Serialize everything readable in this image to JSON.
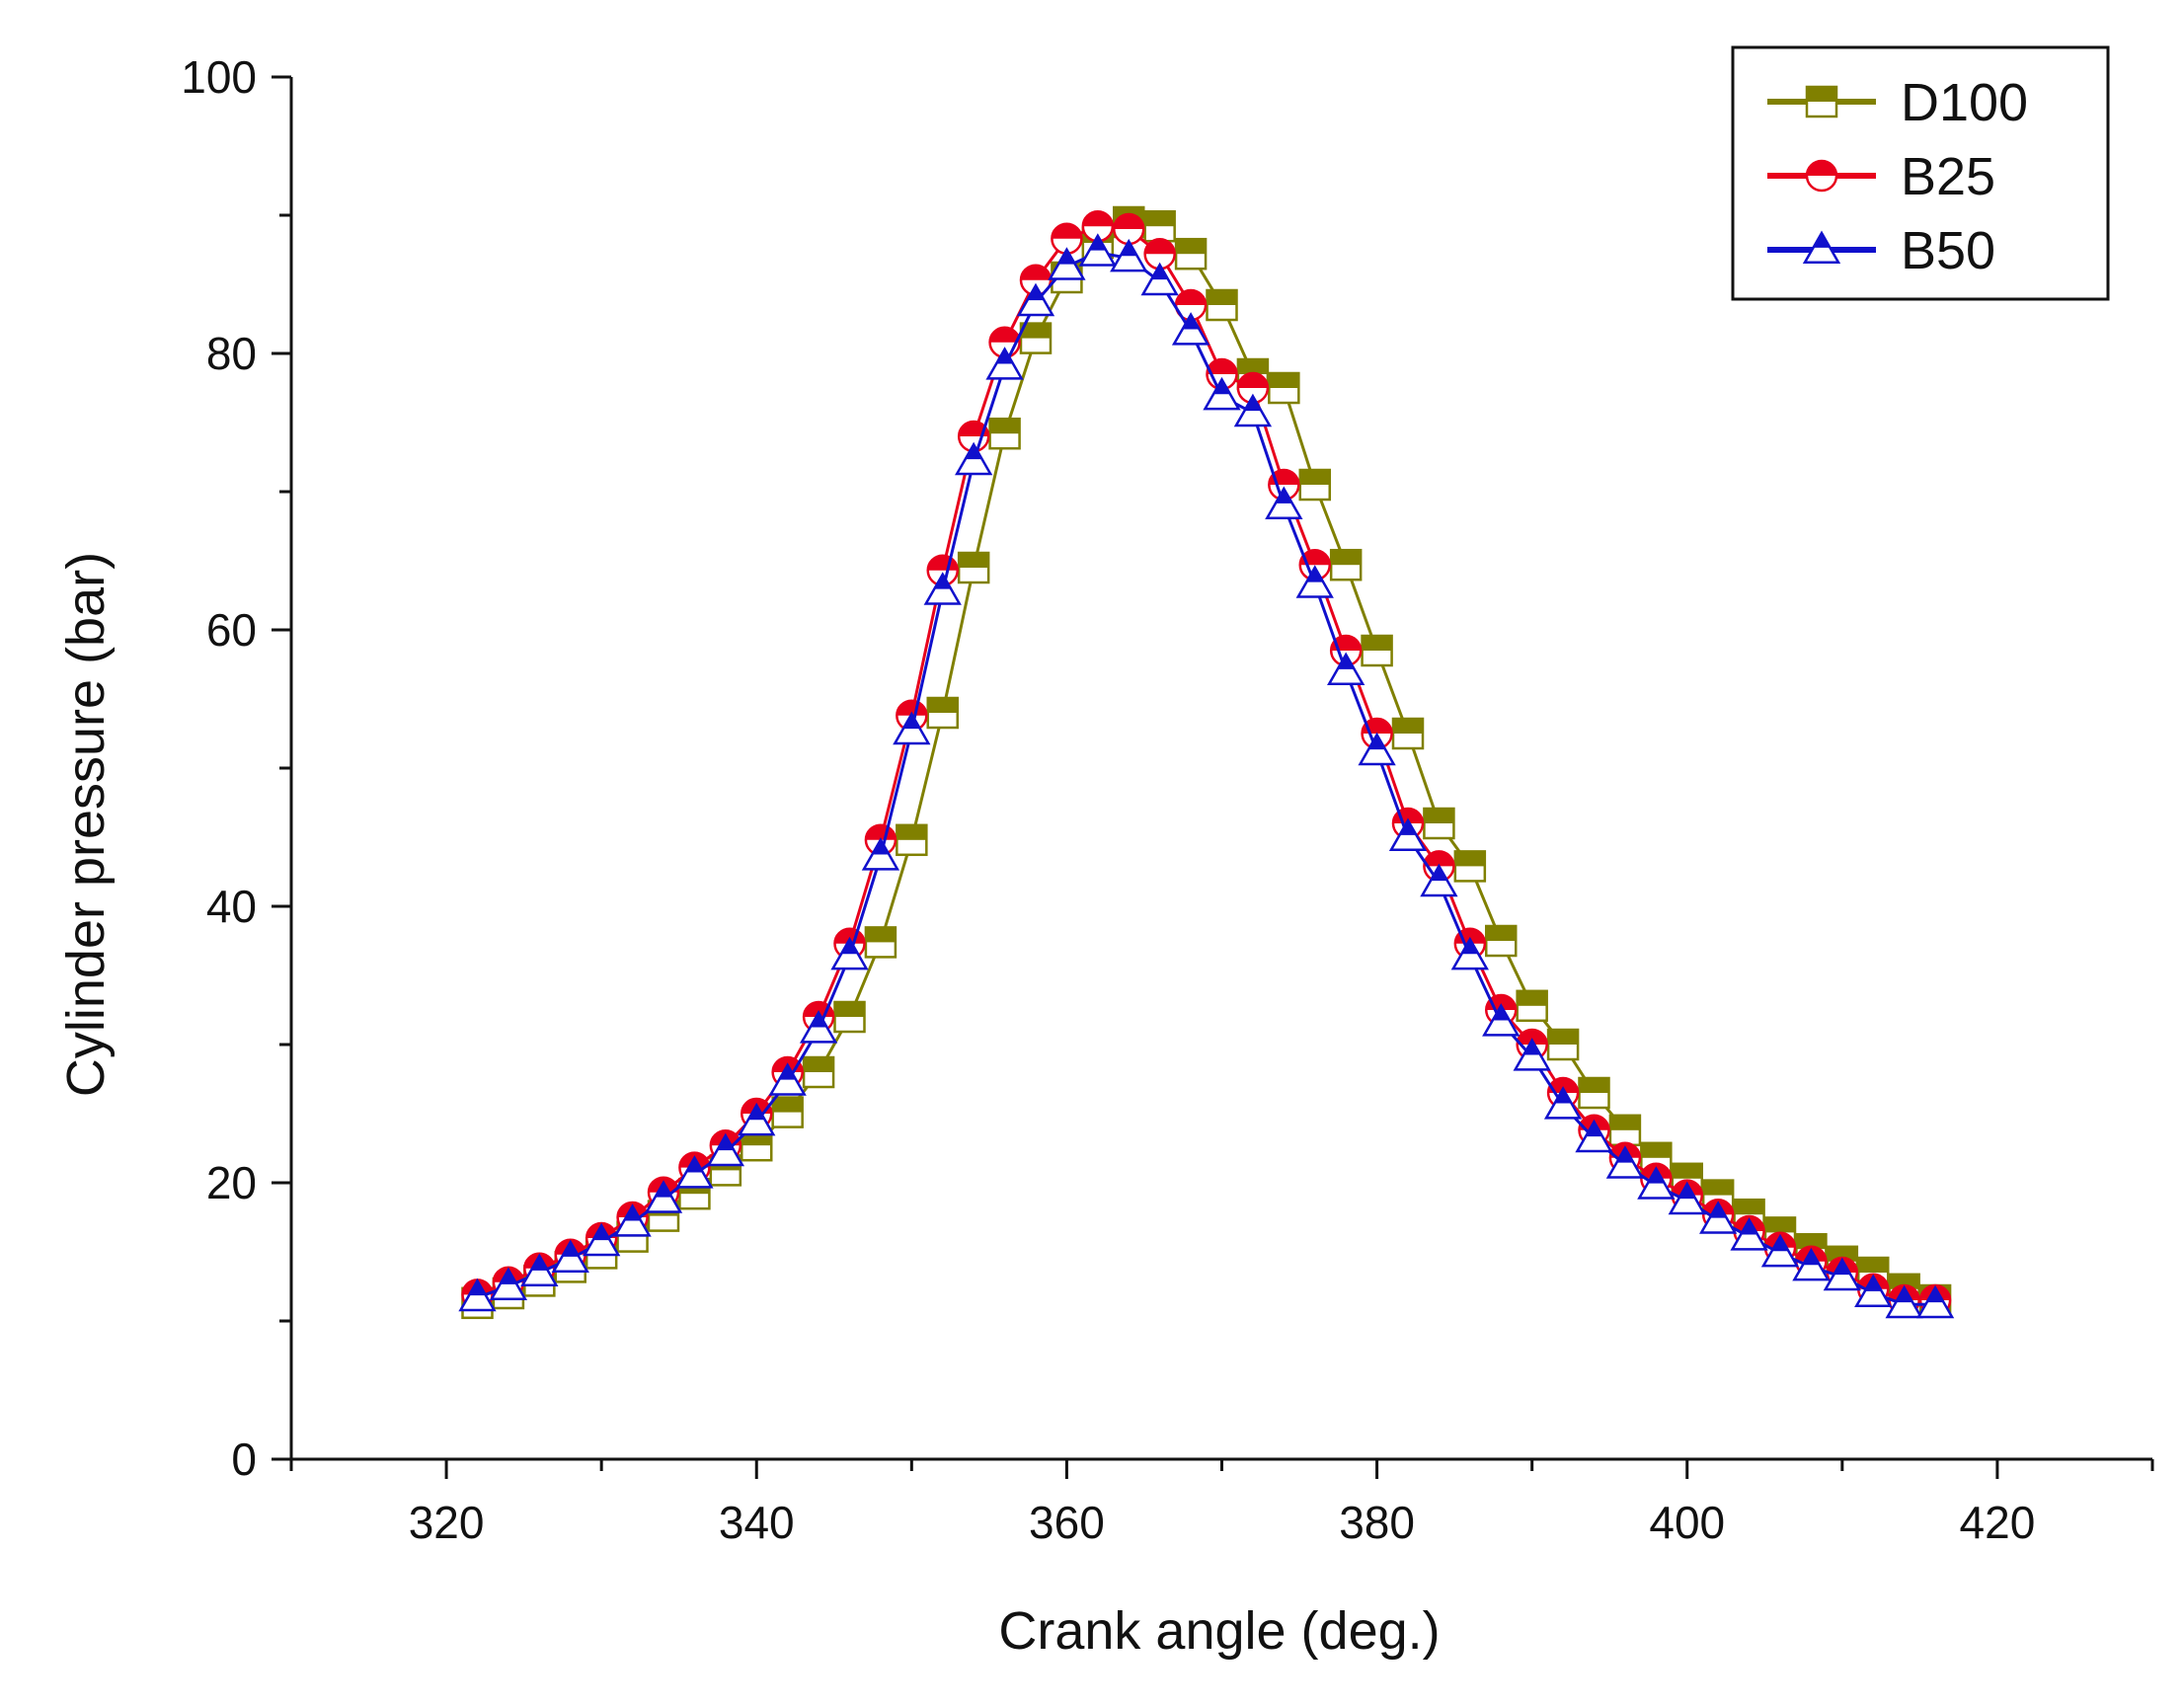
{
  "chart_data": {
    "type": "line",
    "title": "",
    "xlabel": "Crank angle (deg.)",
    "ylabel": "Cylinder pressure (bar)",
    "xlim": [
      310,
      430
    ],
    "ylim": [
      0,
      100
    ],
    "x_ticks": [
      320,
      340,
      360,
      380,
      400,
      420
    ],
    "y_ticks": [
      0,
      20,
      40,
      60,
      80,
      100
    ],
    "x_tick_labels": [
      "320",
      "340",
      "360",
      "380",
      "400",
      "420"
    ],
    "y_tick_labels": [
      "0",
      "20",
      "40",
      "60",
      "80",
      "100"
    ],
    "grid": false,
    "legend_position": "top-right",
    "x": [
      322,
      324,
      326,
      328,
      330,
      332,
      334,
      336,
      338,
      340,
      342,
      344,
      346,
      348,
      350,
      352,
      354,
      356,
      358,
      360,
      362,
      364,
      366,
      368,
      370,
      372,
      374,
      376,
      378,
      380,
      382,
      384,
      386,
      388,
      390,
      392,
      394,
      396,
      398,
      400,
      402,
      404,
      406,
      408,
      410,
      412,
      414,
      416
    ],
    "series": [
      {
        "name": "D100",
        "marker": "square",
        "color": "#808000",
        "values": [
          11.3,
          12.0,
          12.9,
          13.9,
          14.9,
          16.1,
          17.6,
          19.2,
          20.9,
          22.7,
          25.1,
          28.0,
          32.0,
          37.4,
          44.8,
          54.0,
          64.5,
          74.2,
          81.1,
          85.5,
          88.0,
          89.5,
          89.2,
          87.2,
          83.5,
          78.5,
          77.5,
          70.5,
          64.7,
          58.5,
          52.5,
          46.0,
          42.9,
          37.5,
          32.8,
          30.0,
          26.5,
          23.8,
          21.8,
          20.3,
          19.1,
          17.7,
          16.4,
          15.2,
          14.3,
          13.5,
          12.3,
          11.5
        ]
      },
      {
        "name": "B25",
        "marker": "circle",
        "color": "#e8001c",
        "values": [
          11.9,
          12.8,
          13.8,
          14.8,
          16.0,
          17.5,
          19.3,
          21.1,
          22.7,
          25.0,
          28.0,
          32.0,
          37.3,
          44.8,
          53.8,
          64.3,
          74.0,
          80.8,
          85.3,
          88.3,
          89.2,
          89.0,
          87.2,
          83.5,
          78.5,
          77.5,
          70.5,
          64.7,
          58.5,
          52.5,
          46.0,
          42.9,
          37.3,
          32.5,
          30.0,
          26.5,
          23.8,
          21.8,
          20.3,
          19.1,
          17.7,
          16.5,
          15.3,
          14.3,
          13.5,
          12.3,
          11.5,
          11.5
        ]
      },
      {
        "name": "B50",
        "marker": "triangle",
        "color": "#1010cc",
        "values": [
          11.7,
          12.5,
          13.5,
          14.5,
          15.7,
          17.1,
          18.8,
          20.6,
          22.2,
          24.4,
          27.3,
          31.1,
          36.4,
          43.6,
          52.7,
          62.8,
          72.2,
          79.1,
          83.7,
          86.3,
          87.3,
          86.9,
          85.2,
          81.6,
          76.9,
          75.7,
          69.0,
          63.3,
          57.0,
          51.2,
          45.0,
          41.7,
          36.4,
          31.6,
          29.1,
          25.6,
          23.2,
          21.3,
          19.8,
          18.7,
          17.3,
          16.1,
          14.9,
          13.9,
          13.2,
          12.0,
          11.2,
          11.2
        ]
      }
    ]
  }
}
